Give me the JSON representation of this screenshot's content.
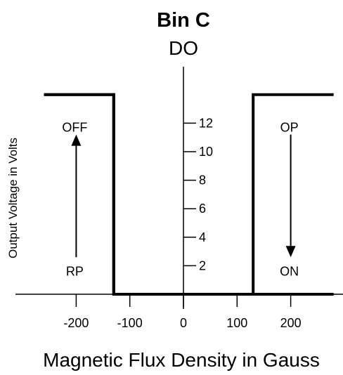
{
  "chart_data": {
    "type": "line",
    "title": "Bin C",
    "subtitle": "DO",
    "xlabel": "Magnetic Flux Density in Gauss",
    "ylabel": "Output Voltage in Volts",
    "x_ticks": [
      -200,
      -100,
      0,
      100,
      200
    ],
    "y_ticks": [
      2,
      4,
      6,
      8,
      10,
      12
    ],
    "xlim": [
      -270,
      280
    ],
    "ylim": [
      0,
      14
    ],
    "series": [
      {
        "x": [
          -260,
          -130,
          -130,
          130,
          130,
          280
        ],
        "y": [
          14,
          14,
          0,
          0,
          14,
          14
        ]
      },
      {
        "x": [
          -260,
          -130,
          -130,
          130,
          130,
          280
        ],
        "y": [
          14,
          14,
          0,
          0,
          0,
          0
        ]
      }
    ],
    "annotations": [
      {
        "text": "OFF",
        "x": -200,
        "y": 11.7
      },
      {
        "text": "RP",
        "x": -200,
        "y": 1.6
      },
      {
        "text": "OP",
        "x": 200,
        "y": 11.7
      },
      {
        "text": "ON",
        "x": 200,
        "y": 1.6
      }
    ],
    "arrows": [
      {
        "x": -200,
        "from_y": 2.6,
        "to_y": 11.2,
        "direction": "up"
      },
      {
        "x": 200,
        "from_y": 11.2,
        "to_y": 2.6,
        "direction": "down"
      }
    ]
  }
}
